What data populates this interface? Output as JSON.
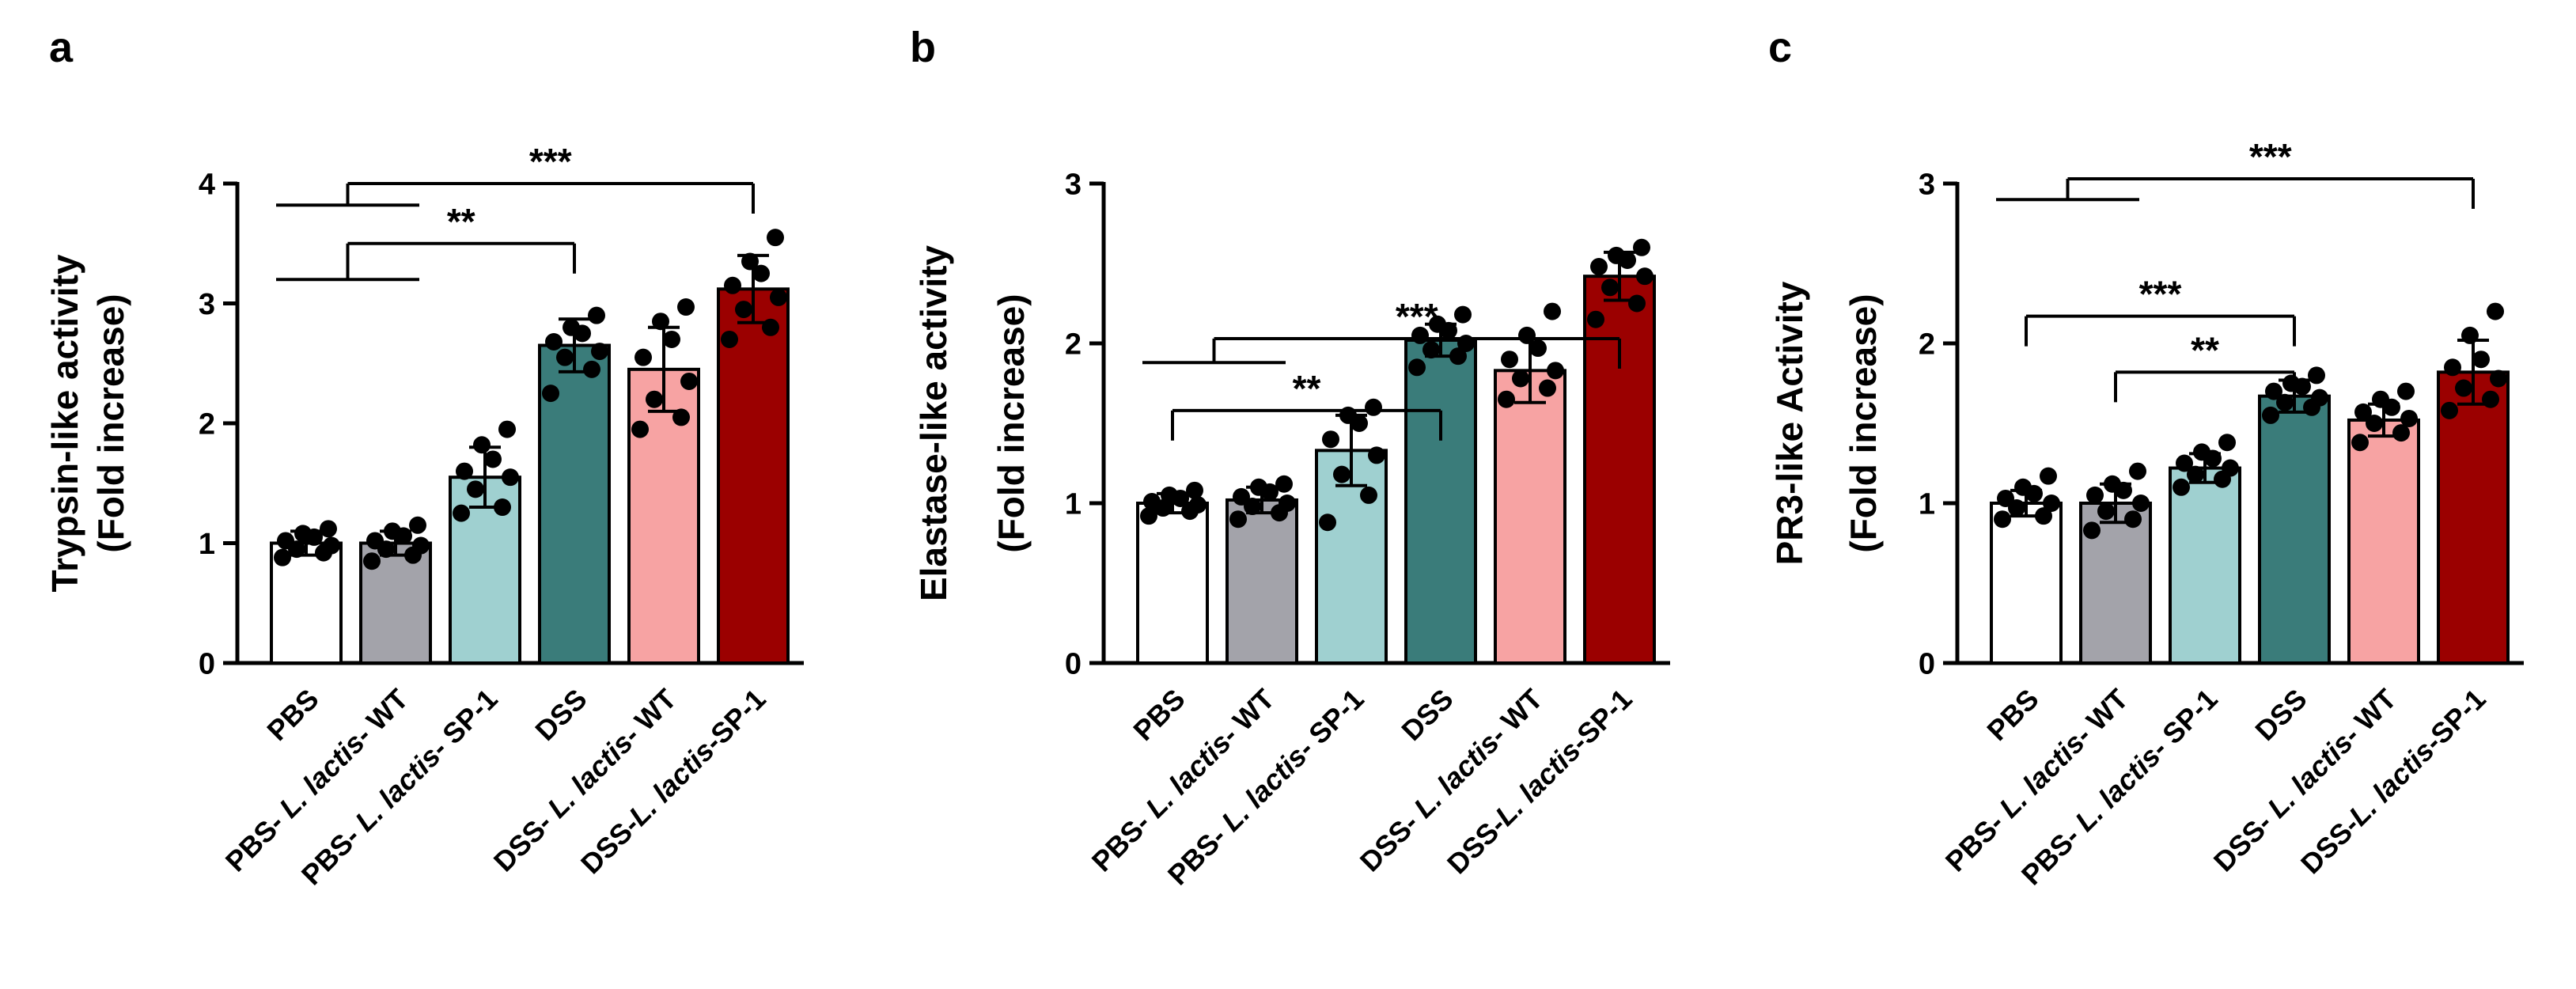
{
  "chart_data": [
    {
      "type": "bar",
      "panel": "a",
      "ylabel": "Trypsin-like activity",
      "ylabel2": "(Fold increase)",
      "ylim": [
        0,
        4
      ],
      "yticks": [
        "0",
        "1",
        "2",
        "3",
        "4"
      ],
      "yticks_values": [
        0,
        1,
        2,
        3,
        4
      ],
      "categories": [
        {
          "pre": "PBS",
          "italic": "",
          "post": ""
        },
        {
          "pre": "PBS- ",
          "italic": "L. lactis",
          "post": "- WT"
        },
        {
          "pre": "PBS- ",
          "italic": "L. lactis",
          "post": "- SP-1"
        },
        {
          "pre": "DSS",
          "italic": "",
          "post": ""
        },
        {
          "pre": "DSS- ",
          "italic": "L. lactis",
          "post": "- WT"
        },
        {
          "pre": "DSS-",
          "italic": "L. lactis",
          "post": "-SP-1"
        }
      ],
      "bar_colors": [
        "#ffffff",
        "#a3a3aa",
        "#9fd0d0",
        "#3a7c7a",
        "#f7a3a3",
        "#9b0000"
      ],
      "values": [
        1.0,
        1.0,
        1.55,
        2.65,
        2.45,
        3.12
      ],
      "errors": [
        0.1,
        0.1,
        0.25,
        0.22,
        0.35,
        0.28
      ],
      "points": [
        [
          0.88,
          0.92,
          0.95,
          0.98,
          1.02,
          1.05,
          1.08,
          1.12
        ],
        [
          0.85,
          0.9,
          0.95,
          0.98,
          1.02,
          1.06,
          1.1,
          1.15
        ],
        [
          1.25,
          1.3,
          1.45,
          1.55,
          1.6,
          1.7,
          1.82,
          1.95
        ],
        [
          2.25,
          2.45,
          2.55,
          2.6,
          2.68,
          2.75,
          2.8,
          2.9
        ],
        [
          1.95,
          2.05,
          2.2,
          2.35,
          2.55,
          2.7,
          2.85,
          2.97
        ],
        [
          2.7,
          2.8,
          2.95,
          3.05,
          3.15,
          3.25,
          3.35,
          3.55
        ]
      ],
      "significance": [
        {
          "label": "**",
          "from_group": [
            0,
            1
          ],
          "to": 3,
          "y": 3.5,
          "group_y": 3.2
        },
        {
          "label": "***",
          "from_group": [
            0,
            1
          ],
          "to": 5,
          "y": 4.0,
          "group_y": 3.82
        }
      ]
    },
    {
      "type": "bar",
      "panel": "b",
      "ylabel": "Elastase-like activity",
      "ylabel2": "(Fold increase)",
      "ylim": [
        0,
        3
      ],
      "yticks": [
        "0",
        "1",
        "2",
        "3"
      ],
      "yticks_values": [
        0,
        1,
        2,
        3
      ],
      "categories": [
        {
          "pre": "PBS",
          "italic": "",
          "post": ""
        },
        {
          "pre": "PBS- ",
          "italic": "L. lactis",
          "post": "- WT"
        },
        {
          "pre": "PBS- ",
          "italic": "L. lactis",
          "post": "- SP-1"
        },
        {
          "pre": "DSS",
          "italic": "",
          "post": ""
        },
        {
          "pre": "DSS- ",
          "italic": "L. lactis",
          "post": "- WT"
        },
        {
          "pre": "DSS-",
          "italic": "L. lactis",
          "post": "-SP-1"
        }
      ],
      "bar_colors": [
        "#ffffff",
        "#a3a3aa",
        "#9fd0d0",
        "#3a7c7a",
        "#f7a3a3",
        "#9b0000"
      ],
      "values": [
        1.0,
        1.02,
        1.33,
        2.02,
        1.83,
        2.42
      ],
      "errors": [
        0.06,
        0.08,
        0.22,
        0.1,
        0.2,
        0.15
      ],
      "points": [
        [
          0.92,
          0.95,
          0.97,
          0.99,
          1.01,
          1.03,
          1.05,
          1.08
        ],
        [
          0.9,
          0.94,
          0.98,
          1.0,
          1.04,
          1.07,
          1.1,
          1.12
        ],
        [
          0.88,
          1.05,
          1.18,
          1.3,
          1.4,
          1.5,
          1.55,
          1.6
        ],
        [
          1.85,
          1.92,
          1.96,
          2.0,
          2.05,
          2.08,
          2.12,
          2.18
        ],
        [
          1.65,
          1.72,
          1.78,
          1.83,
          1.9,
          1.97,
          2.05,
          2.2
        ],
        [
          2.15,
          2.25,
          2.35,
          2.42,
          2.48,
          2.52,
          2.55,
          2.6
        ]
      ],
      "significance": [
        {
          "label": "**",
          "from": 0,
          "to": 3,
          "y": 1.58
        },
        {
          "label": "***",
          "from_group": [
            0,
            1
          ],
          "to": 5,
          "y": 2.03,
          "group_y": 1.88
        }
      ]
    },
    {
      "type": "bar",
      "panel": "c",
      "ylabel": "PR3-like Activity",
      "ylabel2": "(Fold increase)",
      "ylim": [
        0,
        3
      ],
      "yticks": [
        "0",
        "1",
        "2",
        "3"
      ],
      "yticks_values": [
        0,
        1,
        2,
        3
      ],
      "categories": [
        {
          "pre": "PBS",
          "italic": "",
          "post": ""
        },
        {
          "pre": "PBS- ",
          "italic": "L. lactis",
          "post": "- WT"
        },
        {
          "pre": "PBS- ",
          "italic": "L. lactis",
          "post": "- SP-1"
        },
        {
          "pre": "DSS",
          "italic": "",
          "post": ""
        },
        {
          "pre": "DSS- ",
          "italic": "L. lactis",
          "post": "- WT"
        },
        {
          "pre": "DSS-",
          "italic": "L. lactis",
          "post": "-SP-1"
        }
      ],
      "bar_colors": [
        "#ffffff",
        "#a3a3aa",
        "#9fd0d0",
        "#3a7c7a",
        "#f7a3a3",
        "#9b0000"
      ],
      "values": [
        1.0,
        1.0,
        1.22,
        1.67,
        1.52,
        1.82
      ],
      "errors": [
        0.08,
        0.12,
        0.09,
        0.1,
        0.1,
        0.2
      ],
      "points": [
        [
          0.9,
          0.92,
          0.97,
          1.0,
          1.03,
          1.06,
          1.1,
          1.17
        ],
        [
          0.83,
          0.9,
          0.95,
          1.0,
          1.05,
          1.08,
          1.12,
          1.2
        ],
        [
          1.1,
          1.15,
          1.18,
          1.22,
          1.25,
          1.28,
          1.32,
          1.38
        ],
        [
          1.55,
          1.6,
          1.63,
          1.66,
          1.7,
          1.73,
          1.75,
          1.8
        ],
        [
          1.38,
          1.44,
          1.5,
          1.53,
          1.57,
          1.6,
          1.65,
          1.7
        ],
        [
          1.58,
          1.65,
          1.72,
          1.78,
          1.85,
          1.9,
          2.05,
          2.2
        ]
      ],
      "significance": [
        {
          "label": "**",
          "from": 1,
          "to": 3,
          "y": 1.82
        },
        {
          "label": "***",
          "from": 0,
          "to": 3,
          "y": 2.17
        },
        {
          "label": "***",
          "from_group": [
            0,
            1
          ],
          "to": 5,
          "y": 3.03,
          "group_y": 2.9
        }
      ]
    }
  ]
}
